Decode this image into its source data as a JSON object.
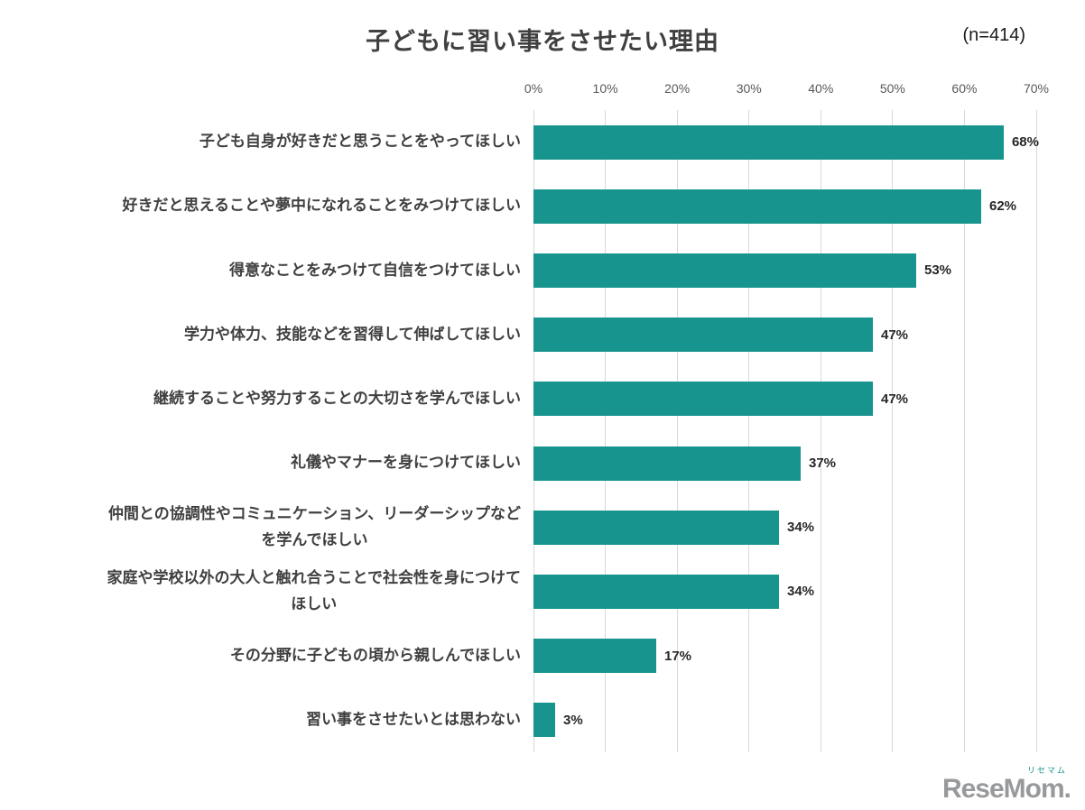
{
  "chart_data": {
    "type": "bar",
    "orientation": "horizontal",
    "title": "子どもに習い事をさせたい理由",
    "sample_label": "(n=414)",
    "categories": [
      "子ども自身が好きだと思うことをやってほしい",
      "好きだと思えることや夢中になれることをみつけてほしい",
      "得意なことをみつけて自信をつけてほしい",
      "学力や体力、技能などを習得して伸ばしてほしい",
      "継続することや努力することの大切さを学んでほしい",
      "礼儀やマナーを身につけてほしい",
      "仲間との協調性やコミュニケーション、リーダーシップなど\nを学んでほしい",
      "家庭や学校以外の大人と触れ合うことで社会性を身につけて\nほしい",
      "その分野に子どもの頃から親しんでほしい",
      "習い事をさせたいとは思わない"
    ],
    "values": [
      68,
      62,
      53,
      47,
      47,
      37,
      34,
      34,
      17,
      3
    ],
    "value_labels": [
      "68%",
      "62%",
      "53%",
      "47%",
      "47%",
      "37%",
      "34%",
      "34%",
      "17%",
      "3%"
    ],
    "xlim": [
      0,
      70
    ],
    "x_ticks": [
      "0%",
      "10%",
      "20%",
      "30%",
      "40%",
      "50%",
      "60%",
      "70%"
    ],
    "bar_color": "#17948d",
    "grid": true,
    "legend": "none"
  },
  "footer": {
    "logo_ruby": "リセマム",
    "logo_text": "ReseMom.",
    "logo_ruby_color": "#17948d"
  }
}
